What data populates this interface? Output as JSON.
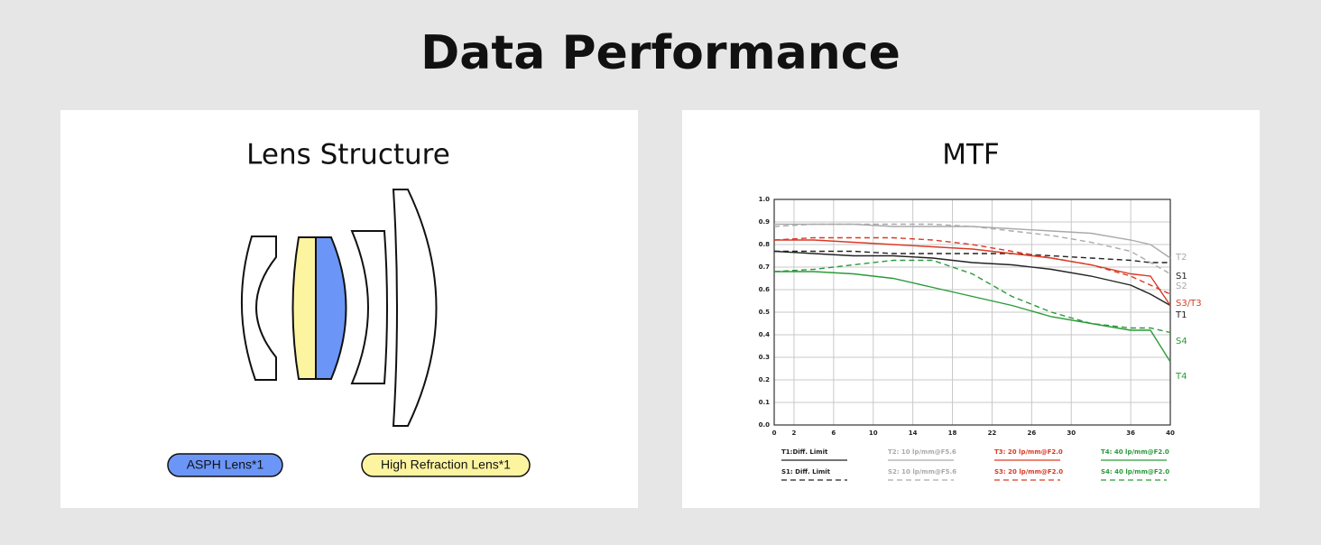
{
  "title": "Data Performance",
  "lens_structure": {
    "title": "Lens Structure",
    "legend": [
      "ASPH Lens*1",
      "High Refraction Lens*1"
    ]
  },
  "chart_data": {
    "type": "line",
    "title": "MTF",
    "x": [
      0,
      4,
      8,
      12,
      16,
      20,
      24,
      28,
      32,
      36,
      38,
      40
    ],
    "xlim": [
      0,
      40
    ],
    "xticks": [
      0,
      2,
      6,
      10,
      14,
      18,
      22,
      26,
      30,
      36,
      40
    ],
    "ylim": [
      0,
      1
    ],
    "yticks": [
      {
        "value": 0,
        "label": "0.0"
      },
      0.1,
      0.2,
      0.3,
      0.4,
      0.5,
      0.6,
      0.7,
      0.8,
      0.9,
      {
        "value": 1,
        "label": "1.0"
      }
    ],
    "grid": true,
    "series": [
      {
        "name": "T1:Diff. Limit",
        "color": "#222222",
        "dash": false,
        "values": [
          0.77,
          0.76,
          0.75,
          0.75,
          0.74,
          0.72,
          0.71,
          0.69,
          0.66,
          0.62,
          0.58,
          0.53
        ]
      },
      {
        "name": "S1: Diff. Limit",
        "color": "#222222",
        "dash": true,
        "values": [
          0.77,
          0.77,
          0.77,
          0.76,
          0.76,
          0.76,
          0.76,
          0.75,
          0.74,
          0.73,
          0.72,
          0.72
        ]
      },
      {
        "name": "T2: 10 lp/mm@F5.6",
        "color": "#aaaaaa",
        "dash": false,
        "values": [
          0.89,
          0.89,
          0.89,
          0.88,
          0.88,
          0.88,
          0.87,
          0.86,
          0.85,
          0.82,
          0.8,
          0.74
        ]
      },
      {
        "name": "S2: 10 lp/mm@F5.6",
        "color": "#aaaaaa",
        "dash": true,
        "values": [
          0.88,
          0.89,
          0.89,
          0.89,
          0.89,
          0.88,
          0.86,
          0.84,
          0.81,
          0.77,
          0.72,
          0.67
        ]
      },
      {
        "name": "T3: 20 lp/mm@F2.0",
        "color": "#d93a26",
        "dash": false,
        "values": [
          0.82,
          0.82,
          0.81,
          0.8,
          0.79,
          0.78,
          0.76,
          0.74,
          0.71,
          0.67,
          0.66,
          0.53
        ]
      },
      {
        "name": "S3: 20 lp/mm@F2.0",
        "color": "#d93a26",
        "dash": true,
        "values": [
          0.82,
          0.83,
          0.83,
          0.83,
          0.82,
          0.8,
          0.77,
          0.74,
          0.71,
          0.66,
          0.62,
          0.58
        ]
      },
      {
        "name": "T4: 40 lp/mm@F2.0",
        "color": "#2a9a3a",
        "dash": false,
        "values": [
          0.68,
          0.68,
          0.67,
          0.65,
          0.61,
          0.57,
          0.53,
          0.48,
          0.45,
          0.42,
          0.42,
          0.28
        ]
      },
      {
        "name": "S4: 40 lp/mm@F2.0",
        "color": "#2a9a3a",
        "dash": true,
        "values": [
          0.68,
          0.69,
          0.71,
          0.73,
          0.73,
          0.67,
          0.57,
          0.5,
          0.45,
          0.43,
          0.43,
          0.41
        ]
      }
    ],
    "end_labels": [
      {
        "text": "T2",
        "color": "#aaaaaa"
      },
      {
        "text": "S1",
        "color": "#222222"
      },
      {
        "text": "S2",
        "color": "#aaaaaa"
      },
      {
        "text": "S3/T3",
        "color": "#d93a26"
      },
      {
        "text": "T1",
        "color": "#222222"
      },
      {
        "text": "S4",
        "color": "#2a9a3a"
      },
      {
        "text": "T4",
        "color": "#2a9a3a"
      }
    ]
  }
}
